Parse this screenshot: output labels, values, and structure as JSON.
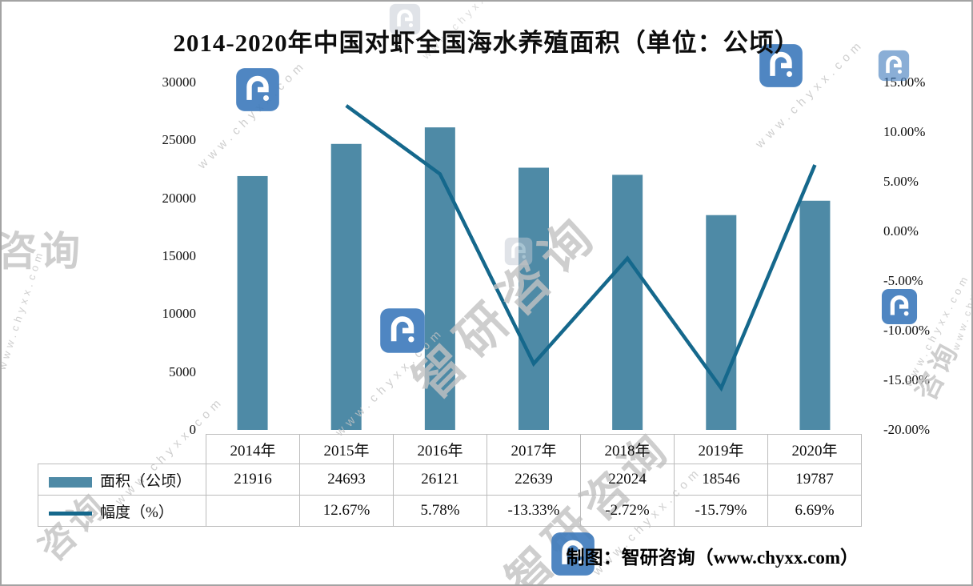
{
  "title": "2014-2020年中国对虾全国海水养殖面积（单位：公顷）",
  "credit": "制图：智研咨询（www.chyxx.com）",
  "watermark": {
    "site": "www.chyxx.com",
    "brand": "智研咨询",
    "brand_partial": "咨询",
    "logo_color": "#3d7abc",
    "logo_faint_color": "#c3c9d2",
    "text_color": "#c3c3c3"
  },
  "chart_data": {
    "type": "bar+line",
    "title": "2014-2020年中国对虾全国海水养殖面积（单位：公顷）",
    "categories": [
      "2014年",
      "2015年",
      "2016年",
      "2017年",
      "2018年",
      "2019年",
      "2020年"
    ],
    "series": [
      {
        "name": "面积（公顷）",
        "type": "bar",
        "axis": "left",
        "color": "#4e8aa6",
        "values": [
          21916,
          24693,
          26121,
          22639,
          22024,
          18546,
          19787
        ]
      },
      {
        "name": "幅度（%）",
        "type": "line",
        "axis": "right",
        "color": "#15688c",
        "values": [
          null,
          12.67,
          5.78,
          -13.33,
          -2.72,
          -15.79,
          6.69
        ]
      }
    ],
    "left_axis": {
      "min": 0,
      "max": 30000,
      "step": 5000,
      "labels": [
        "30000",
        "25000",
        "20000",
        "15000",
        "10000",
        "5000",
        "0"
      ]
    },
    "right_axis": {
      "min": -20,
      "max": 15,
      "step": 5,
      "labels": [
        "15.00%",
        "10.00%",
        "5.00%",
        "0.00%",
        "-5.00%",
        "-10.00%",
        "-15.00%",
        "-20.00%"
      ]
    },
    "grid": "off",
    "legend_position": "table-left",
    "table": {
      "rows": [
        {
          "legend": "bar",
          "label": "面积（公顷）",
          "cells": [
            "21916",
            "24693",
            "26121",
            "22639",
            "22024",
            "18546",
            "19787"
          ]
        },
        {
          "legend": "line",
          "label": "幅度（%）",
          "cells": [
            "",
            "12.67%",
            "5.78%",
            "-13.33%",
            "-2.72%",
            "-15.79%",
            "6.69%"
          ]
        }
      ]
    }
  }
}
